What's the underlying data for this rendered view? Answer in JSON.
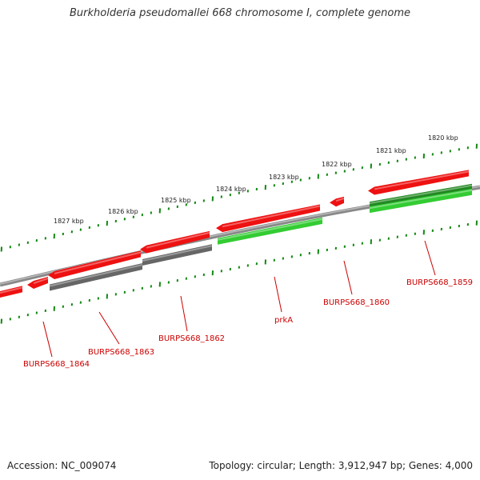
{
  "title": "Burkholderia pseudomallei 668 chromosome I, complete genome",
  "footer": {
    "accession": "Accession: NC_009074",
    "summary": "Topology: circular; Length: 3,912,947 bp; Genes: 4,000"
  },
  "colors": {
    "forward_gene": "#ee1111",
    "other_gene": "#666666",
    "rna_gene": "#33cc33",
    "axis_ring": "#888888",
    "ticks": "#118811",
    "label": "#cc0000"
  },
  "scale_labels": [
    "1820 kbp",
    "1821 kbp",
    "1822 kbp",
    "1823 kbp",
    "1824 kbp",
    "1825 kbp",
    "1826 kbp",
    "1827 kbp"
  ],
  "gene_labels": [
    "BURPS668_1859",
    "BURPS668_1860",
    "prkA",
    "BURPS668_1862",
    "BURPS668_1863",
    "BURPS668_1864"
  ]
}
